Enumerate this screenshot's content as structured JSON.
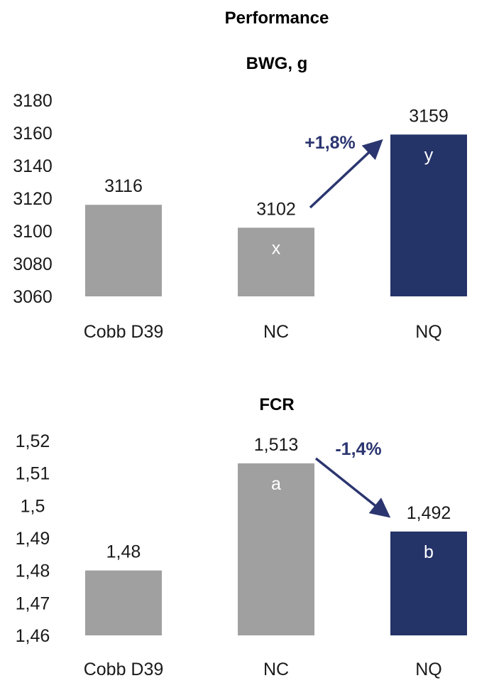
{
  "title": "Performance",
  "colors": {
    "grey": "#a0a0a0",
    "navy": "#243368",
    "annotation": "#2b3670",
    "text": "#1a1a1a"
  },
  "chart_data": [
    {
      "type": "bar",
      "title": "BWG, g",
      "categories": [
        "Cobb D39",
        "NC",
        "NQ"
      ],
      "values": [
        3116,
        3102,
        3159
      ],
      "value_labels": [
        "3116",
        "3102",
        "3159"
      ],
      "letters": [
        "",
        "x",
        "y"
      ],
      "bar_colors": [
        "grey",
        "grey",
        "navy"
      ],
      "ylim": [
        3060,
        3180
      ],
      "yticks": [
        3060,
        3080,
        3100,
        3120,
        3140,
        3160,
        3180
      ],
      "ytick_labels": [
        "3060",
        "3080",
        "3100",
        "3120",
        "3140",
        "3160",
        "3180"
      ],
      "annotation": {
        "text": "+1,8%",
        "from": "NC",
        "to": "NQ"
      },
      "grid": false
    },
    {
      "type": "bar",
      "title": "FCR",
      "categories": [
        "Cobb D39",
        "NC",
        "NQ"
      ],
      "values": [
        1.48,
        1.513,
        1.492
      ],
      "value_labels": [
        "1,48",
        "1,513",
        "1,492"
      ],
      "letters": [
        "",
        "a",
        "b"
      ],
      "bar_colors": [
        "grey",
        "grey",
        "navy"
      ],
      "ylim": [
        1.46,
        1.52
      ],
      "yticks": [
        1.46,
        1.47,
        1.48,
        1.49,
        1.5,
        1.51,
        1.52
      ],
      "ytick_labels": [
        "1,46",
        "1,47",
        "1,48",
        "1,49",
        "1,5",
        "1,51",
        "1,52"
      ],
      "annotation": {
        "text": "-1,4%",
        "from": "NC",
        "to": "NQ"
      },
      "grid": false
    }
  ]
}
